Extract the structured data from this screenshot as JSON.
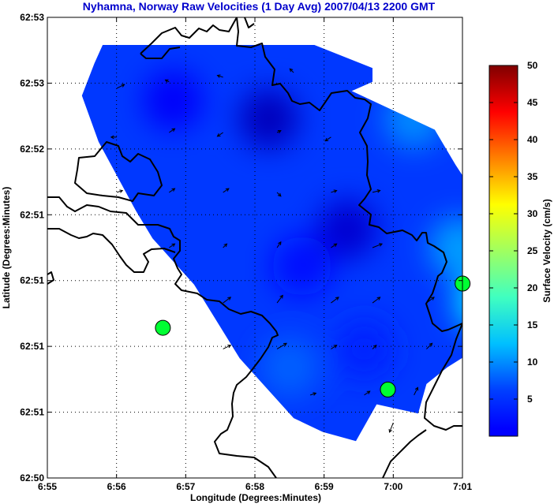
{
  "chart_data": {
    "type": "heatmap",
    "title": "Nyhamna, Norway Raw Velocities (1 Day Avg) 2007/04/13 2200 GMT",
    "xlabel": "Longitude (Degrees:Minutes)",
    "ylabel": "Latitude (Degrees:Minutes)",
    "x_ticks": [
      "6:55",
      "6:56",
      "6:57",
      "6:58",
      "6:59",
      "7:00",
      "7:01"
    ],
    "y_ticks": [
      "62:53",
      "62:53",
      "62:52",
      "62:51",
      "62:51",
      "62:51",
      "62:51",
      "62:50"
    ],
    "grid": true,
    "colorbar": {
      "label": "Surface Velocity (cm/s)",
      "ticks": [
        "5",
        "10",
        "15",
        "20",
        "25",
        "30",
        "35",
        "40",
        "45",
        "50"
      ],
      "colormap": "jet",
      "range": [
        0,
        50
      ]
    },
    "velocity_field": {
      "region_polygon_lonlat": [
        [
          6.958,
          62.88
        ],
        [
          6.981,
          62.88
        ],
        [
          6.995,
          62.8775
        ],
        [
          6.995,
          62.876
        ],
        [
          6.99,
          62.875
        ],
        [
          7.01,
          62.8708
        ],
        [
          7.015,
          62.867
        ],
        [
          7.023,
          62.8615
        ],
        [
          7.026,
          62.8565
        ],
        [
          7.028,
          62.8515
        ],
        [
          7.025,
          62.8485
        ],
        [
          7.02,
          62.847
        ],
        [
          7.013,
          62.845
        ],
        [
          7.008,
          62.8432
        ],
        [
          7.006,
          62.84
        ],
        [
          6.996,
          62.841
        ],
        [
          6.991,
          62.837
        ],
        [
          6.983,
          62.838
        ],
        [
          6.976,
          62.8395
        ],
        [
          6.963,
          62.846
        ],
        [
          6.952,
          62.854
        ],
        [
          6.942,
          62.859
        ],
        [
          6.938,
          62.862
        ],
        [
          6.929,
          62.8695
        ],
        [
          6.925,
          62.8745
        ],
        [
          6.928,
          62.878
        ],
        [
          6.93,
          62.88
        ]
      ],
      "speed_patches": [
        {
          "lon": 6.97,
          "lat": 62.872,
          "speed": 3
        },
        {
          "lon": 6.989,
          "lat": 62.86,
          "speed": 4
        },
        {
          "lon": 6.947,
          "lat": 62.874,
          "speed": 6
        },
        {
          "lon": 6.978,
          "lat": 62.856,
          "speed": 7
        },
        {
          "lon": 6.993,
          "lat": 62.847,
          "speed": 8
        },
        {
          "lon": 7.016,
          "lat": 62.858,
          "speed": 14
        },
        {
          "lon": 7.005,
          "lat": 62.872,
          "speed": 13
        },
        {
          "lon": 6.975,
          "lat": 62.845,
          "speed": 11
        },
        {
          "lon": 7.022,
          "lat": 62.852,
          "speed": 17
        }
      ],
      "vectors": [
        {
          "lon": 6.9334,
          "lat": 62.8753,
          "u": 0.4,
          "v": 0.2
        },
        {
          "lon": 6.946,
          "lat": 62.876,
          "u": -0.2,
          "v": 0.1
        },
        {
          "lon": 6.959,
          "lat": 62.8765,
          "u": -0.3,
          "v": 0.1
        },
        {
          "lon": 6.976,
          "lat": 62.877,
          "u": -0.2,
          "v": 0.2
        },
        {
          "lon": 6.9334,
          "lat": 62.87,
          "u": -0.3,
          "v": 0.0
        },
        {
          "lon": 6.946,
          "lat": 62.8705,
          "u": 0.3,
          "v": 0.2
        },
        {
          "lon": 6.959,
          "lat": 62.8705,
          "u": -0.3,
          "v": -0.2
        },
        {
          "lon": 6.972,
          "lat": 62.8705,
          "u": 0.2,
          "v": 0.1
        },
        {
          "lon": 6.985,
          "lat": 62.87,
          "u": -0.3,
          "v": -0.2
        },
        {
          "lon": 6.9334,
          "lat": 62.864,
          "u": 0.3,
          "v": 0.1
        },
        {
          "lon": 6.946,
          "lat": 62.864,
          "u": 0.3,
          "v": 0.2
        },
        {
          "lon": 6.959,
          "lat": 62.864,
          "u": 0.3,
          "v": 0.2
        },
        {
          "lon": 6.972,
          "lat": 62.864,
          "u": 0.2,
          "v": -0.2
        },
        {
          "lon": 6.985,
          "lat": 62.864,
          "u": 0.3,
          "v": 0.1
        },
        {
          "lon": 6.995,
          "lat": 62.864,
          "u": 0.4,
          "v": 0.1
        },
        {
          "lon": 6.946,
          "lat": 62.858,
          "u": 0.3,
          "v": 0.2
        },
        {
          "lon": 6.959,
          "lat": 62.858,
          "u": 0.2,
          "v": 0.2
        },
        {
          "lon": 6.972,
          "lat": 62.858,
          "u": 0.2,
          "v": 0.3
        },
        {
          "lon": 6.985,
          "lat": 62.858,
          "u": 0.3,
          "v": 0.2
        },
        {
          "lon": 6.995,
          "lat": 62.858,
          "u": 0.5,
          "v": 0.2
        },
        {
          "lon": 6.959,
          "lat": 62.852,
          "u": 0.4,
          "v": 0.3
        },
        {
          "lon": 6.972,
          "lat": 62.852,
          "u": 0.3,
          "v": 0.4
        },
        {
          "lon": 6.985,
          "lat": 62.852,
          "u": 0.4,
          "v": 0.3
        },
        {
          "lon": 6.995,
          "lat": 62.852,
          "u": 0.4,
          "v": 0.3
        },
        {
          "lon": 7.008,
          "lat": 62.852,
          "u": 0.4,
          "v": 0.3
        },
        {
          "lon": 6.959,
          "lat": 62.847,
          "u": 0.4,
          "v": 0.2
        },
        {
          "lon": 6.972,
          "lat": 62.847,
          "u": 0.5,
          "v": 0.3
        },
        {
          "lon": 6.985,
          "lat": 62.847,
          "u": 0.3,
          "v": 0.2
        },
        {
          "lon": 6.995,
          "lat": 62.847,
          "u": 0.2,
          "v": 0.2
        },
        {
          "lon": 7.008,
          "lat": 62.847,
          "u": 0.3,
          "v": 0.3
        },
        {
          "lon": 6.98,
          "lat": 62.842,
          "u": 0.3,
          "v": 0.1
        },
        {
          "lon": 6.993,
          "lat": 62.842,
          "u": 0.3,
          "v": 0.2
        },
        {
          "lon": 7.005,
          "lat": 62.842,
          "u": 0.2,
          "v": 0.4
        },
        {
          "lon": 7.017,
          "lat": 62.846,
          "u": 0.1,
          "v": 0.5
        },
        {
          "lon": 7.023,
          "lat": 62.85,
          "u": 0.0,
          "v": 0.4
        },
        {
          "lon": 7.0,
          "lat": 62.839,
          "u": -0.2,
          "v": -0.5
        }
      ],
      "vector_color": "#000000"
    },
    "sites": [
      {
        "lon": 6.9445,
        "lat": 62.8493
      },
      {
        "lon": 6.9987,
        "lat": 62.8426
      },
      {
        "lon": 7.0167,
        "lat": 62.8541
      }
    ],
    "site_color": "#00ff33",
    "coastline_color": "#000000"
  }
}
